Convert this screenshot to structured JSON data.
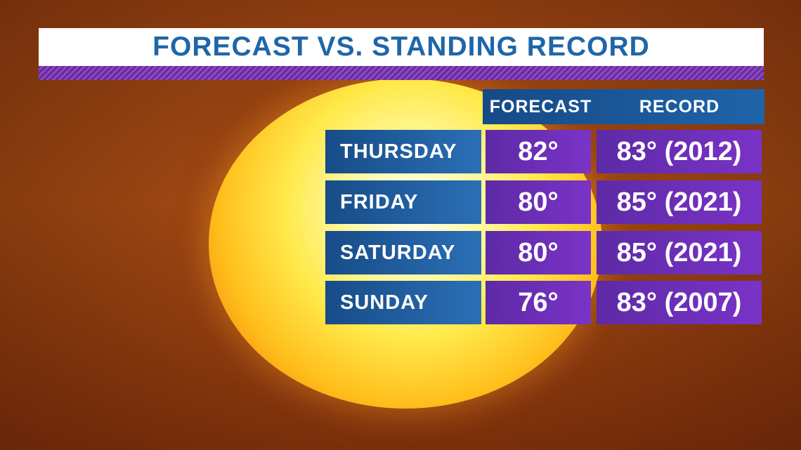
{
  "title": "FORECAST VS. STANDING RECORD",
  "headers": {
    "forecast": "FORECAST",
    "record": "RECORD"
  },
  "rows": [
    {
      "day": "THURSDAY",
      "forecast": "82°",
      "record": "83° (2012)"
    },
    {
      "day": "FRIDAY",
      "forecast": "80°",
      "record": "85° (2021)"
    },
    {
      "day": "SATURDAY",
      "forecast": "80°",
      "record": "85° (2021)"
    },
    {
      "day": "SUNDAY",
      "forecast": "76°",
      "record": "83° (2007)"
    }
  ],
  "colors": {
    "title_text": "#1f66a8",
    "day_cell": "#1f5f9f",
    "value_cell": "#6a2fb8",
    "stripe": "#7a3aae"
  }
}
